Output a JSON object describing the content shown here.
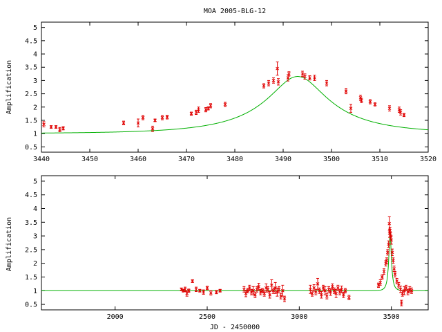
{
  "figure_title": "MOA 2005-BLG-12",
  "colors": {
    "model": "#00b000",
    "data": "#e00000",
    "frame": "#000000"
  },
  "chart_data": [
    {
      "type": "scatter",
      "name": "top",
      "xlabel": "",
      "ylabel": "Amplification",
      "xlim": [
        3440,
        3520
      ],
      "ylim": [
        0.3,
        5.2
      ],
      "xticks": [
        3440,
        3450,
        3460,
        3470,
        3480,
        3490,
        3500,
        3510,
        3520
      ],
      "yticks": [
        0.5,
        1,
        1.5,
        2,
        2.5,
        3,
        3.5,
        4,
        4.5,
        5
      ],
      "model": {
        "t0": 3493,
        "u0": 0.33,
        "tE": 19
      },
      "points": [
        [
          3440.5,
          1.35,
          0.1
        ],
        [
          3442,
          1.25,
          0.05
        ],
        [
          3443,
          1.25,
          0.05
        ],
        [
          3443.8,
          1.15,
          0.08
        ],
        [
          3444.5,
          1.2,
          0.06
        ],
        [
          3457,
          1.4,
          0.07
        ],
        [
          3460,
          1.4,
          0.15
        ],
        [
          3461,
          1.6,
          0.08
        ],
        [
          3463,
          1.18,
          0.1
        ],
        [
          3463.5,
          1.5,
          0.05
        ],
        [
          3465,
          1.6,
          0.08
        ],
        [
          3466,
          1.62,
          0.07
        ],
        [
          3471,
          1.75,
          0.06
        ],
        [
          3472,
          1.8,
          0.08
        ],
        [
          3472.5,
          1.9,
          0.1
        ],
        [
          3474,
          1.9,
          0.08
        ],
        [
          3474.5,
          1.95,
          0.06
        ],
        [
          3475,
          2.05,
          0.08
        ],
        [
          3478,
          2.1,
          0.08
        ],
        [
          3486,
          2.8,
          0.08
        ],
        [
          3487,
          2.9,
          0.1
        ],
        [
          3488,
          3.0,
          0.1
        ],
        [
          3488.8,
          3.45,
          0.25
        ],
        [
          3489,
          2.95,
          0.12
        ],
        [
          3491,
          3.1,
          0.12
        ],
        [
          3491.2,
          3.25,
          0.08
        ],
        [
          3494,
          3.25,
          0.1
        ],
        [
          3494.5,
          3.15,
          0.1
        ],
        [
          3495.5,
          3.1,
          0.08
        ],
        [
          3496.5,
          3.1,
          0.1
        ],
        [
          3499,
          2.9,
          0.1
        ],
        [
          3503,
          2.6,
          0.1
        ],
        [
          3504,
          1.95,
          0.15
        ],
        [
          3506,
          2.35,
          0.1
        ],
        [
          3506.2,
          2.25,
          0.08
        ],
        [
          3508,
          2.2,
          0.08
        ],
        [
          3509,
          2.1,
          0.06
        ],
        [
          3512,
          1.95,
          0.1
        ],
        [
          3514,
          1.9,
          0.1
        ],
        [
          3514.3,
          1.8,
          0.1
        ],
        [
          3515,
          1.7,
          0.06
        ]
      ]
    },
    {
      "type": "scatter",
      "name": "bottom",
      "xlabel": "JD - 2450000",
      "ylabel": "Amplification",
      "xlim": [
        1600,
        3700
      ],
      "ylim": [
        0.3,
        5.2
      ],
      "xticks": [
        2000,
        2500,
        3000,
        3500
      ],
      "yticks": [
        0.5,
        1,
        1.5,
        2,
        2.5,
        3,
        3.5,
        4,
        4.5,
        5
      ],
      "model": {
        "t0": 3493,
        "u0": 0.33,
        "tE": 19
      },
      "points": [
        [
          2360,
          1.05,
          0.05
        ],
        [
          2370,
          1.0,
          0.05
        ],
        [
          2380,
          1.05,
          0.08
        ],
        [
          2390,
          0.9,
          0.1
        ],
        [
          2400,
          1.0,
          0.06
        ],
        [
          2420,
          1.35,
          0.05
        ],
        [
          2440,
          1.05,
          0.08
        ],
        [
          2460,
          1.0,
          0.05
        ],
        [
          2480,
          0.95,
          0.08
        ],
        [
          2500,
          1.1,
          0.06
        ],
        [
          2520,
          0.92,
          0.08
        ],
        [
          2550,
          0.95,
          0.06
        ],
        [
          2570,
          1.0,
          0.05
        ],
        [
          2700,
          1.05,
          0.1
        ],
        [
          2710,
          0.9,
          0.12
        ],
        [
          2720,
          1.0,
          0.08
        ],
        [
          2730,
          1.1,
          0.1
        ],
        [
          2740,
          0.95,
          0.1
        ],
        [
          2750,
          1.0,
          0.15
        ],
        [
          2760,
          0.85,
          0.1
        ],
        [
          2770,
          1.05,
          0.1
        ],
        [
          2780,
          1.15,
          0.12
        ],
        [
          2790,
          0.95,
          0.1
        ],
        [
          2800,
          1.0,
          0.08
        ],
        [
          2810,
          0.9,
          0.1
        ],
        [
          2820,
          1.1,
          0.15
        ],
        [
          2830,
          1.05,
          0.1
        ],
        [
          2840,
          0.85,
          0.12
        ],
        [
          2850,
          1.2,
          0.2
        ],
        [
          2860,
          1.0,
          0.1
        ],
        [
          2870,
          1.1,
          0.2
        ],
        [
          2880,
          0.95,
          0.15
        ],
        [
          2890,
          1.05,
          0.1
        ],
        [
          2900,
          0.8,
          0.1
        ],
        [
          2910,
          1.0,
          0.2
        ],
        [
          2920,
          0.7,
          0.1
        ],
        [
          3060,
          1.05,
          0.15
        ],
        [
          3070,
          0.9,
          0.1
        ],
        [
          3080,
          1.1,
          0.12
        ],
        [
          3090,
          0.95,
          0.1
        ],
        [
          3100,
          1.25,
          0.2
        ],
        [
          3110,
          1.0,
          0.1
        ],
        [
          3120,
          0.85,
          0.12
        ],
        [
          3130,
          1.1,
          0.1
        ],
        [
          3140,
          1.0,
          0.15
        ],
        [
          3150,
          0.8,
          0.1
        ],
        [
          3160,
          1.05,
          0.1
        ],
        [
          3170,
          0.95,
          0.12
        ],
        [
          3180,
          1.15,
          0.1
        ],
        [
          3190,
          1.0,
          0.1
        ],
        [
          3200,
          0.9,
          0.15
        ],
        [
          3210,
          1.1,
          0.1
        ],
        [
          3220,
          0.95,
          0.1
        ],
        [
          3230,
          1.05,
          0.12
        ],
        [
          3240,
          0.85,
          0.1
        ],
        [
          3250,
          1.0,
          0.08
        ],
        [
          3270,
          0.75,
          0.08
        ],
        [
          3430,
          1.2,
          0.08
        ],
        [
          3440,
          1.3,
          0.1
        ],
        [
          3450,
          1.5,
          0.08
        ],
        [
          3460,
          1.7,
          0.1
        ],
        [
          3470,
          2.0,
          0.1
        ],
        [
          3475,
          2.1,
          0.1
        ],
        [
          3480,
          2.4,
          0.1
        ],
        [
          3485,
          2.7,
          0.12
        ],
        [
          3489,
          3.45,
          0.25
        ],
        [
          3490,
          3.1,
          0.15
        ],
        [
          3493,
          3.2,
          0.12
        ],
        [
          3496,
          3.0,
          0.12
        ],
        [
          3500,
          2.85,
          0.15
        ],
        [
          3505,
          2.4,
          0.12
        ],
        [
          3510,
          2.1,
          0.1
        ],
        [
          3515,
          1.8,
          0.1
        ],
        [
          3520,
          1.6,
          0.1
        ],
        [
          3530,
          1.35,
          0.1
        ],
        [
          3540,
          1.2,
          0.1
        ],
        [
          3550,
          1.05,
          0.12
        ],
        [
          3560,
          0.9,
          0.1
        ],
        [
          3570,
          1.0,
          0.15
        ],
        [
          3580,
          1.1,
          0.1
        ],
        [
          3590,
          0.95,
          0.1
        ],
        [
          3600,
          1.05,
          0.1
        ],
        [
          3610,
          1.0,
          0.1
        ],
        [
          3555,
          0.55,
          0.1
        ]
      ]
    }
  ]
}
